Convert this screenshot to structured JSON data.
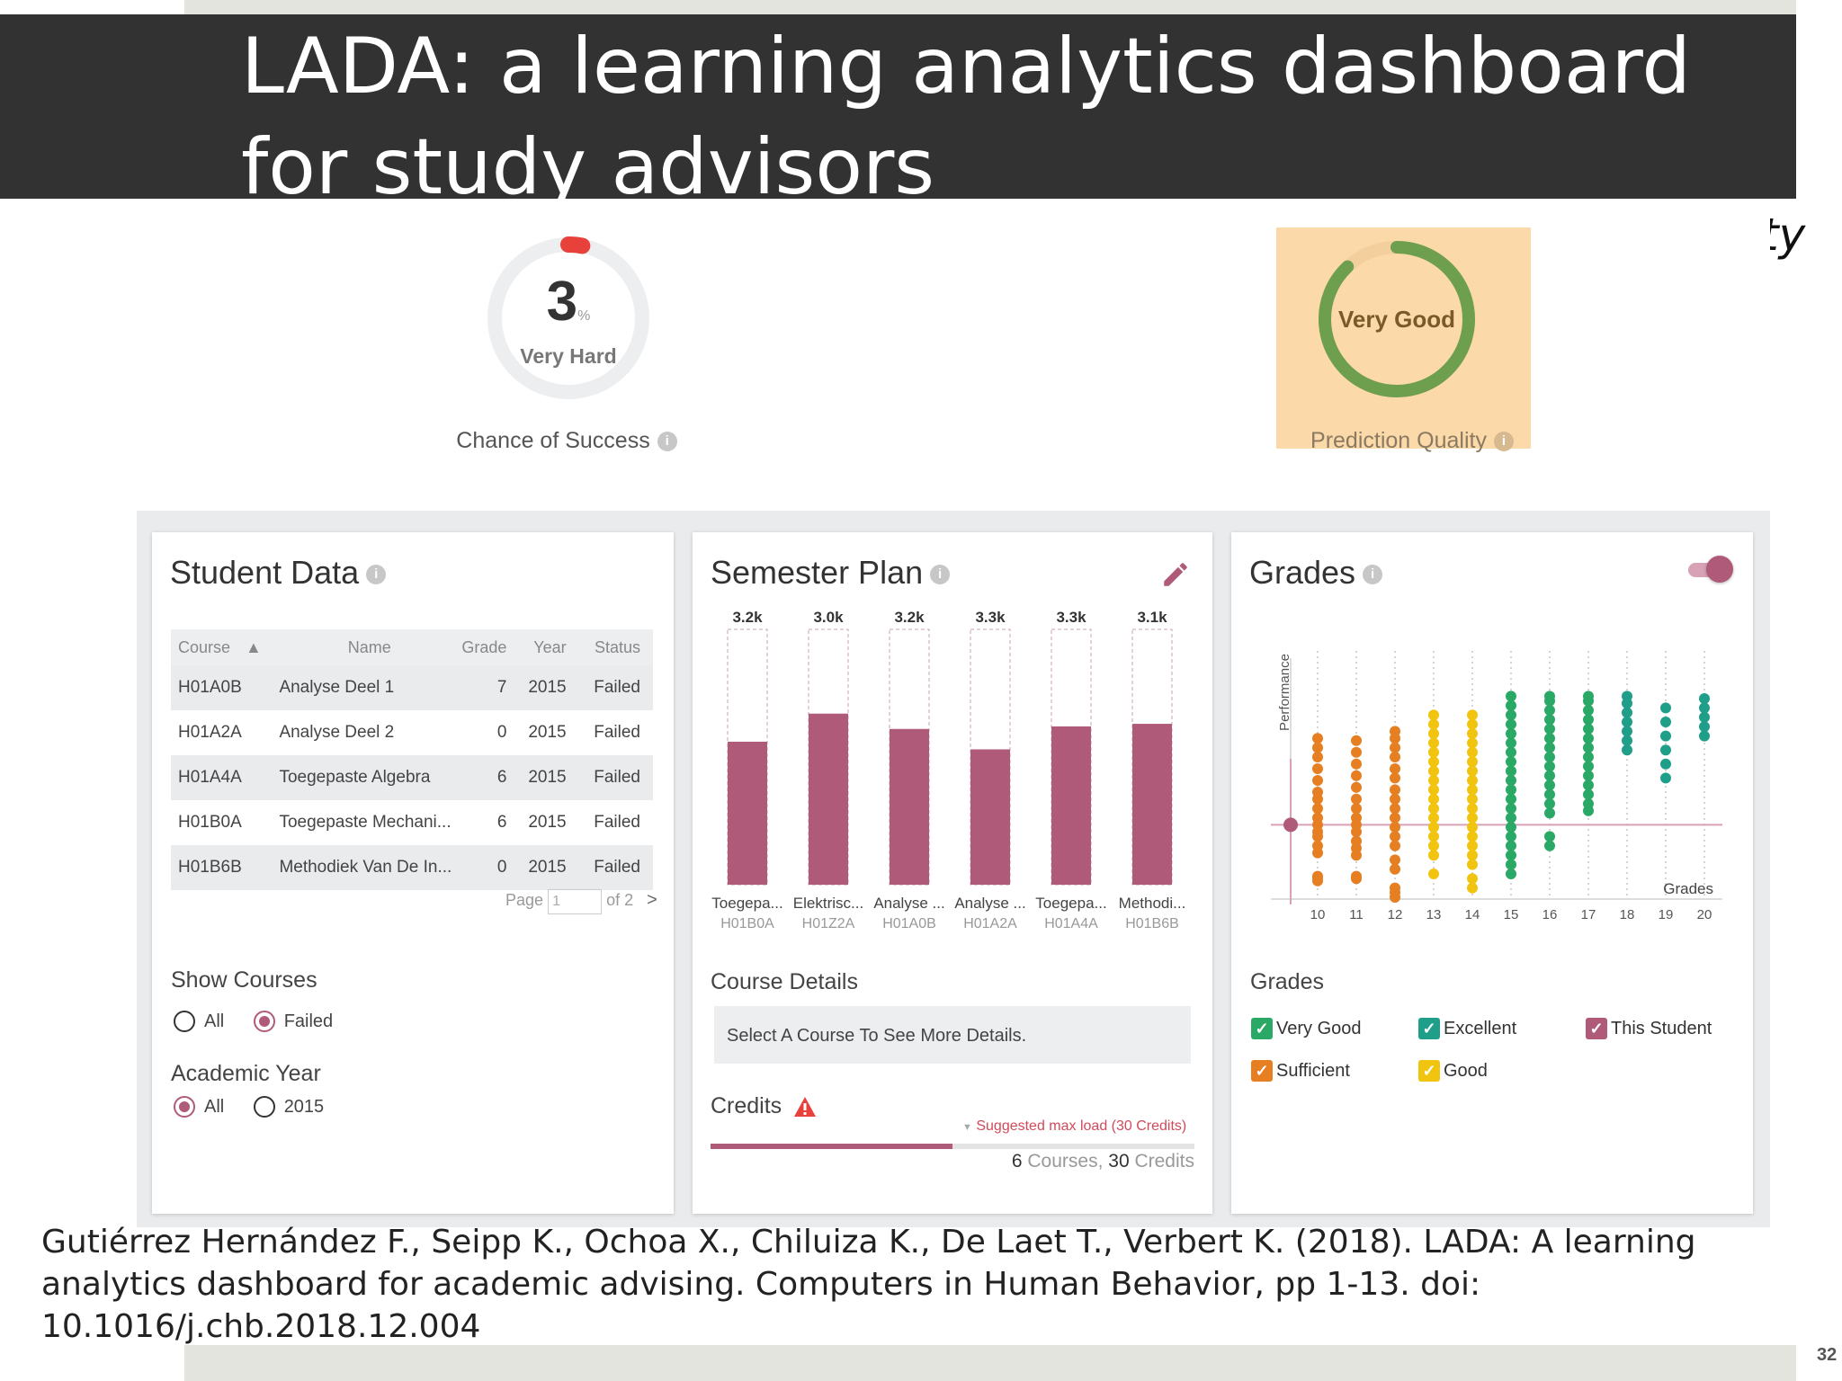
{
  "slide": {
    "title": "LADA: a learning analytics dashboard for study advisors",
    "annotation": "uncertainty",
    "citation": "Gutiérrez Hernández F., Seipp K., Ochoa X., Chiluiza K., De Laet T., Verbert K. (2018). LADA: A learning analytics dashboard for academic advising. Computers in Human Behavior, pp 1-13. doi: 10.1016/j.chb.2018.12.004",
    "page_number": "32",
    "accent_color": "#8fbf26"
  },
  "chance_of_success": {
    "value": "3",
    "unit": "%",
    "fraction": 0.03,
    "difficulty": "Very Hard",
    "label": "Chance of Success",
    "color": "#e8403a"
  },
  "prediction_quality": {
    "value_label": "Very Good",
    "label": "Prediction Quality",
    "fraction": 0.88,
    "color": "#6d9f4f",
    "highlight_color": "#fbd9a8"
  },
  "student_data": {
    "title": "Student Data",
    "columns": [
      "Course",
      "Name",
      "Grade",
      "Year",
      "Status"
    ],
    "sort_indicator": "▲",
    "rows": [
      {
        "course": "H01A0B",
        "name": "Analyse Deel 1",
        "grade": "7",
        "year": "2015",
        "status": "Failed"
      },
      {
        "course": "H01A2A",
        "name": "Analyse Deel 2",
        "grade": "0",
        "year": "2015",
        "status": "Failed"
      },
      {
        "course": "H01A4A",
        "name": "Toegepaste Algebra",
        "grade": "6",
        "year": "2015",
        "status": "Failed"
      },
      {
        "course": "H01B0A",
        "name": "Toegepaste Mechani...",
        "grade": "6",
        "year": "2015",
        "status": "Failed"
      },
      {
        "course": "H01B6B",
        "name": "Methodiek Van De In...",
        "grade": "0",
        "year": "2015",
        "status": "Failed"
      }
    ],
    "pagination": {
      "page_label": "Page",
      "page_value": "1",
      "of_label": "of 2",
      "next": ">"
    },
    "show_courses": {
      "label": "Show Courses",
      "options": [
        "All",
        "Failed"
      ],
      "selected": "Failed"
    },
    "academic_year": {
      "label": "Academic Year",
      "options": [
        "All",
        "2015"
      ],
      "selected": "All"
    }
  },
  "semester_plan": {
    "title": "Semester Plan",
    "course_details_label": "Course Details",
    "course_details_placeholder": "Select A Course To See More Details.",
    "credits_label": "Credits",
    "suggested_label": "Suggested max load (30 Credits)",
    "credits_fraction": 0.5,
    "summary_courses": "6",
    "summary_courses_label": "Courses,",
    "summary_credits": "30",
    "summary_credits_label": "Credits",
    "bar_color": "#b05a7a"
  },
  "grades": {
    "title": "Grades",
    "legend_title": "Grades",
    "legend": [
      {
        "label": "Very Good",
        "color": "#2aa865"
      },
      {
        "label": "Excellent",
        "color": "#1f9e8a"
      },
      {
        "label": "This Student",
        "color": "#b05a7a"
      },
      {
        "label": "Sufficient",
        "color": "#e67e22"
      },
      {
        "label": "Good",
        "color": "#f1c40f"
      }
    ],
    "toggle_on": true
  },
  "chart_data": [
    {
      "type": "bar",
      "categories": [
        "Toegepa...",
        "Elektrisc...",
        "Analyse ...",
        "Analyse ...",
        "Toegepa...",
        "Methodi..."
      ],
      "codes": [
        "H01B0A",
        "H01Z2A",
        "H01A0B",
        "H01A2A",
        "H01A4A",
        "H01B6B"
      ],
      "data_labels": [
        "3.2k",
        "3.0k",
        "3.2k",
        "3.3k",
        "3.3k",
        "3.1k"
      ],
      "values": [
        0.56,
        0.67,
        0.61,
        0.53,
        0.62,
        0.63
      ],
      "ylim": [
        0,
        1
      ]
    },
    {
      "type": "scatter",
      "xlabel": "Grades",
      "ylabel": "Performance",
      "x_ticks": [
        10,
        11,
        12,
        13,
        14,
        15,
        16,
        17,
        18,
        19,
        20
      ],
      "this_student": {
        "x": 9.5,
        "y": 0.31
      },
      "threshold_y": 0.31,
      "series": [
        {
          "x": 10,
          "group": "Sufficient",
          "y": [
            0.07,
            0.08,
            0.09,
            0.19,
            0.22,
            0.26,
            0.28,
            0.31,
            0.34,
            0.38,
            0.42,
            0.45,
            0.5,
            0.55,
            0.6,
            0.64,
            0.68
          ]
        },
        {
          "x": 11,
          "group": "Sufficient",
          "y": [
            0.08,
            0.09,
            0.18,
            0.21,
            0.24,
            0.28,
            0.31,
            0.34,
            0.38,
            0.42,
            0.47,
            0.52,
            0.57,
            0.62,
            0.67
          ]
        },
        {
          "x": 12,
          "group": "Sufficient",
          "y": [
            0.0,
            0.02,
            0.04,
            0.12,
            0.16,
            0.22,
            0.26,
            0.3,
            0.34,
            0.38,
            0.42,
            0.46,
            0.51,
            0.55,
            0.6,
            0.64,
            0.68,
            0.71
          ]
        },
        {
          "x": 13,
          "group": "Good",
          "y": [
            0.1,
            0.18,
            0.22,
            0.26,
            0.3,
            0.34,
            0.38,
            0.42,
            0.46,
            0.5,
            0.54,
            0.58,
            0.62,
            0.66,
            0.7,
            0.74,
            0.78
          ]
        },
        {
          "x": 14,
          "group": "Good",
          "y": [
            0.04,
            0.08,
            0.14,
            0.18,
            0.22,
            0.26,
            0.3,
            0.34,
            0.38,
            0.42,
            0.46,
            0.5,
            0.54,
            0.58,
            0.62,
            0.66,
            0.7,
            0.74,
            0.78
          ]
        },
        {
          "x": 15,
          "group": "Very Good",
          "y": [
            0.1,
            0.14,
            0.18,
            0.22,
            0.26,
            0.3,
            0.34,
            0.38,
            0.42,
            0.46,
            0.5,
            0.54,
            0.58,
            0.62,
            0.66,
            0.7,
            0.74,
            0.78,
            0.82,
            0.86
          ]
        },
        {
          "x": 16,
          "group": "Very Good",
          "y": [
            0.22,
            0.26,
            0.36,
            0.4,
            0.44,
            0.48,
            0.52,
            0.56,
            0.6,
            0.64,
            0.68,
            0.72,
            0.76,
            0.8,
            0.84,
            0.86
          ]
        },
        {
          "x": 17,
          "group": "Very Good",
          "y": [
            0.37,
            0.4,
            0.44,
            0.48,
            0.52,
            0.56,
            0.6,
            0.64,
            0.68,
            0.72,
            0.76,
            0.8,
            0.84,
            0.86
          ]
        },
        {
          "x": 18,
          "group": "Excellent",
          "y": [
            0.63,
            0.67,
            0.71,
            0.75,
            0.79,
            0.83,
            0.86
          ]
        },
        {
          "x": 19,
          "group": "Excellent",
          "y": [
            0.51,
            0.57,
            0.63,
            0.69,
            0.75,
            0.81
          ]
        },
        {
          "x": 20,
          "group": "Excellent",
          "y": [
            0.69,
            0.73,
            0.77,
            0.81,
            0.85
          ]
        }
      ]
    }
  ]
}
